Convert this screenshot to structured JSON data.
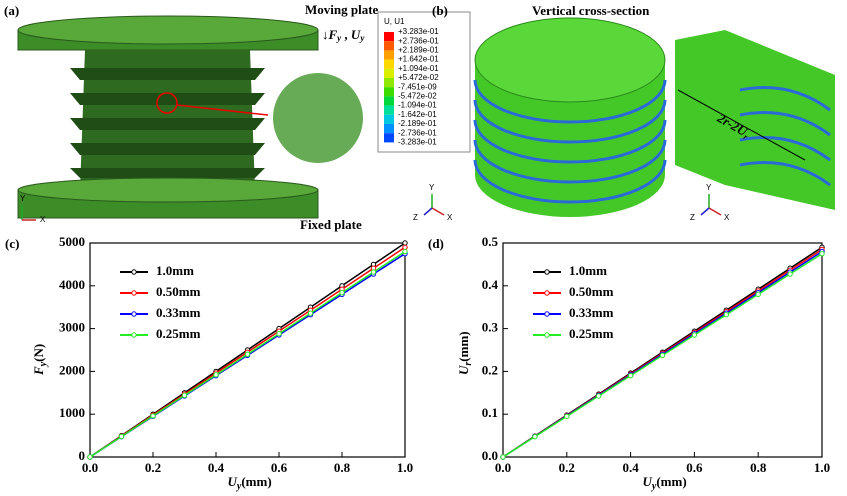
{
  "panel_a": {
    "label": "(a)",
    "moving_plate": "Moving plate",
    "fixed_plate": "Fixed plate",
    "load": {
      "f": "F",
      "f_sub": "y",
      "sep": " , ",
      "u": "U",
      "u_sub": "y"
    },
    "axes": {
      "y": "Y",
      "x": "X"
    },
    "contour": {
      "title": "U, U1",
      "levels": [
        "+3.283e-01",
        "+2.736e-01",
        "+2.189e-01",
        "+1.642e-01",
        "+1.094e-01",
        "+5.472e-02",
        "-7.451e-09",
        "-5.472e-02",
        "-1.094e-01",
        "-1.642e-01",
        "-2.189e-01",
        "-2.736e-01",
        "-3.283e-01"
      ],
      "colors": [
        "#ff0000",
        "#ff5a00",
        "#ffa000",
        "#ffd800",
        "#d8f000",
        "#8ee800",
        "#3cdc00",
        "#00d83c",
        "#00e09a",
        "#00c8e0",
        "#0090ff",
        "#0048ff",
        "#0000d8"
      ]
    },
    "axes2": {
      "y": "Y",
      "z": "Z",
      "x": "X"
    }
  },
  "panel_b": {
    "label": "(b)",
    "title": "Vertical cross-section",
    "dim": {
      "main": "2r-2U",
      "sub": "r"
    },
    "axes": {
      "y": "Y",
      "z": "Z",
      "x": "X"
    }
  },
  "chart_data": [
    {
      "type": "line",
      "label": "(c)",
      "xlabel": {
        "main": "U",
        "sub": "y",
        "unit": "(mm)"
      },
      "ylabel": {
        "main": "F",
        "sub": "y",
        "unit": "(N)"
      },
      "x": [
        0,
        0.1,
        0.2,
        0.3,
        0.4,
        0.5,
        0.6,
        0.7,
        0.8,
        0.9,
        1.0
      ],
      "xlim": [
        0,
        1
      ],
      "xticks": [
        {
          "value": 0,
          "label": "0.0"
        },
        0.2,
        0.4,
        0.6,
        0.8,
        {
          "value": 1,
          "label": "1.0"
        }
      ],
      "ylim": [
        0,
        5000
      ],
      "yticks": [
        0,
        1000,
        2000,
        3000,
        4000,
        5000
      ],
      "legend": "upper left",
      "series": [
        {
          "name": "1.0mm",
          "color": "#000000",
          "values": [
            0,
            500,
            1000,
            1500,
            2000,
            2500,
            3000,
            3500,
            4000,
            4500,
            5000
          ]
        },
        {
          "name": "0.50mm",
          "color": "#ff0000",
          "values": [
            0,
            490,
            980,
            1470,
            1960,
            2450,
            2940,
            3430,
            3920,
            4410,
            4900
          ]
        },
        {
          "name": "0.33mm",
          "color": "#0000ff",
          "values": [
            0,
            475,
            950,
            1425,
            1900,
            2375,
            2850,
            3325,
            3800,
            4275,
            4750
          ]
        },
        {
          "name": "0.25mm",
          "color": "#22ee22",
          "values": [
            0,
            480,
            960,
            1440,
            1920,
            2400,
            2880,
            3360,
            3840,
            4320,
            4800
          ]
        }
      ]
    },
    {
      "type": "line",
      "label": "(d)",
      "xlabel": {
        "main": "U",
        "sub": "y",
        "unit": "(mm)"
      },
      "ylabel": {
        "main": "U",
        "sub": "r",
        "unit": "(mm)"
      },
      "x": [
        0,
        0.1,
        0.2,
        0.3,
        0.4,
        0.5,
        0.6,
        0.7,
        0.8,
        0.9,
        1.0
      ],
      "xlim": [
        0,
        1
      ],
      "xticks": [
        {
          "value": 0,
          "label": "0.0"
        },
        0.2,
        0.4,
        0.6,
        0.8,
        {
          "value": 1,
          "label": "1.0"
        }
      ],
      "ylim": [
        0,
        0.5
      ],
      "yticks": [
        {
          "value": 0,
          "label": "0.0"
        },
        0.1,
        0.2,
        0.3,
        0.4,
        0.5
      ],
      "legend": "upper left",
      "series": [
        {
          "name": "1.0mm",
          "color": "#000000",
          "values": [
            0,
            0.049,
            0.098,
            0.147,
            0.196,
            0.245,
            0.294,
            0.343,
            0.392,
            0.441,
            0.49
          ]
        },
        {
          "name": "0.50mm",
          "color": "#ff0000",
          "values": [
            0,
            0.0485,
            0.097,
            0.1455,
            0.194,
            0.2425,
            0.291,
            0.3395,
            0.388,
            0.4365,
            0.485
          ]
        },
        {
          "name": "0.33mm",
          "color": "#0000ff",
          "values": [
            0,
            0.048,
            0.096,
            0.144,
            0.192,
            0.24,
            0.288,
            0.336,
            0.384,
            0.432,
            0.48
          ]
        },
        {
          "name": "0.25mm",
          "color": "#22ee22",
          "values": [
            0,
            0.0475,
            0.095,
            0.1425,
            0.19,
            0.2375,
            0.285,
            0.3325,
            0.38,
            0.4275,
            0.475
          ]
        }
      ]
    }
  ]
}
